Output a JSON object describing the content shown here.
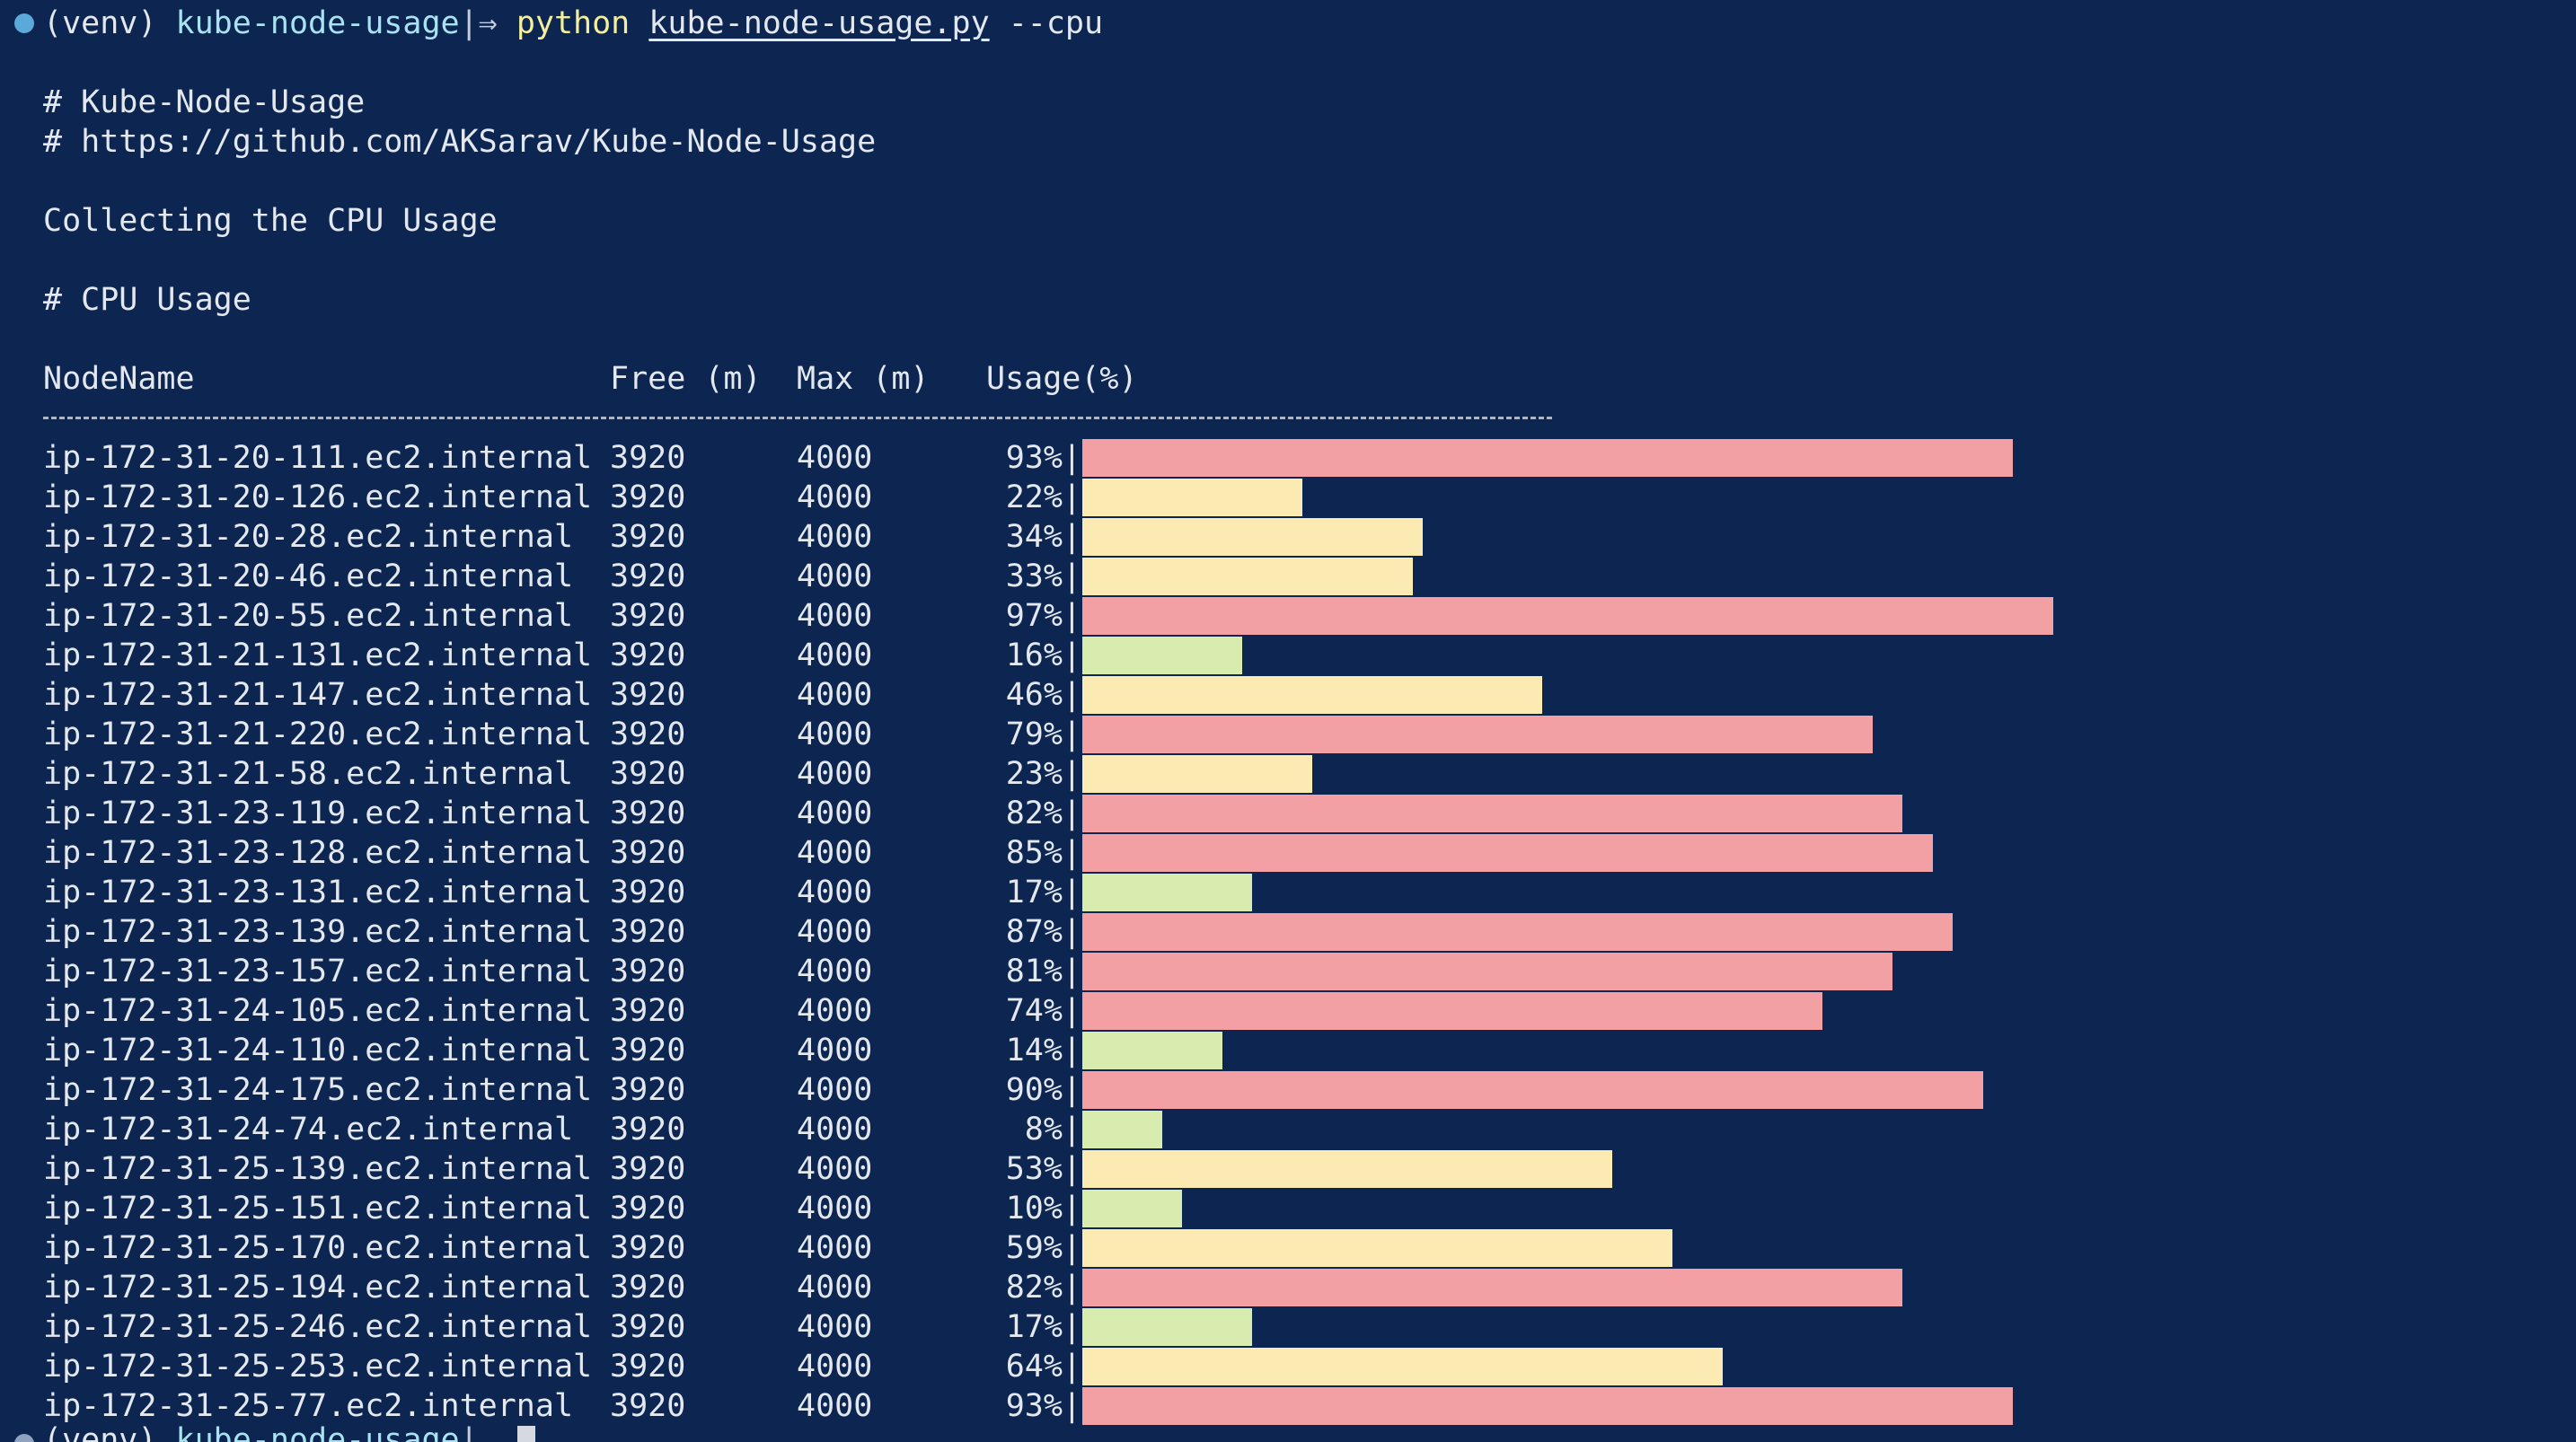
{
  "colors": {
    "background": "#0c2551",
    "text": "#e3e7ee",
    "prompt_dot": "#5aa9d8",
    "bar_high": "#f2a0a4",
    "bar_mid": "#fbeab2",
    "bar_low": "#d8ecb0"
  },
  "prompt": {
    "venv": "(venv)",
    "directory": "kube-node-usage",
    "separator": "|⇒",
    "command": "python",
    "script": "kube-node-usage.py",
    "argument": "--cpu"
  },
  "output": {
    "comment_title": "# Kube-Node-Usage",
    "comment_url": "# https://github.com/AKSarav/Kube-Node-Usage",
    "collecting": "Collecting the CPU Usage",
    "section_title": "# CPU Usage"
  },
  "table": {
    "headers": {
      "node": "NodeName",
      "free": "Free (m)",
      "max": "Max (m)",
      "usage": "Usage(%)"
    },
    "rows": [
      {
        "node": "ip-172-31-20-111.ec2.internal",
        "free": "3920",
        "max": "4000",
        "usage_label": "93%|",
        "usage": 93,
        "level": "high"
      },
      {
        "node": "ip-172-31-20-126.ec2.internal",
        "free": "3920",
        "max": "4000",
        "usage_label": "22%|",
        "usage": 22,
        "level": "mid"
      },
      {
        "node": "ip-172-31-20-28.ec2.internal",
        "free": "3920",
        "max": "4000",
        "usage_label": "34%|",
        "usage": 34,
        "level": "mid"
      },
      {
        "node": "ip-172-31-20-46.ec2.internal",
        "free": "3920",
        "max": "4000",
        "usage_label": "33%|",
        "usage": 33,
        "level": "mid"
      },
      {
        "node": "ip-172-31-20-55.ec2.internal",
        "free": "3920",
        "max": "4000",
        "usage_label": "97%|",
        "usage": 97,
        "level": "high"
      },
      {
        "node": "ip-172-31-21-131.ec2.internal",
        "free": "3920",
        "max": "4000",
        "usage_label": "16%|",
        "usage": 16,
        "level": "low"
      },
      {
        "node": "ip-172-31-21-147.ec2.internal",
        "free": "3920",
        "max": "4000",
        "usage_label": "46%|",
        "usage": 46,
        "level": "mid"
      },
      {
        "node": "ip-172-31-21-220.ec2.internal",
        "free": "3920",
        "max": "4000",
        "usage_label": "79%|",
        "usage": 79,
        "level": "high"
      },
      {
        "node": "ip-172-31-21-58.ec2.internal",
        "free": "3920",
        "max": "4000",
        "usage_label": "23%|",
        "usage": 23,
        "level": "mid"
      },
      {
        "node": "ip-172-31-23-119.ec2.internal",
        "free": "3920",
        "max": "4000",
        "usage_label": "82%|",
        "usage": 82,
        "level": "high"
      },
      {
        "node": "ip-172-31-23-128.ec2.internal",
        "free": "3920",
        "max": "4000",
        "usage_label": "85%|",
        "usage": 85,
        "level": "high"
      },
      {
        "node": "ip-172-31-23-131.ec2.internal",
        "free": "3920",
        "max": "4000",
        "usage_label": "17%|",
        "usage": 17,
        "level": "low"
      },
      {
        "node": "ip-172-31-23-139.ec2.internal",
        "free": "3920",
        "max": "4000",
        "usage_label": "87%|",
        "usage": 87,
        "level": "high"
      },
      {
        "node": "ip-172-31-23-157.ec2.internal",
        "free": "3920",
        "max": "4000",
        "usage_label": "81%|",
        "usage": 81,
        "level": "high"
      },
      {
        "node": "ip-172-31-24-105.ec2.internal",
        "free": "3920",
        "max": "4000",
        "usage_label": "74%|",
        "usage": 74,
        "level": "high"
      },
      {
        "node": "ip-172-31-24-110.ec2.internal",
        "free": "3920",
        "max": "4000",
        "usage_label": "14%|",
        "usage": 14,
        "level": "low"
      },
      {
        "node": "ip-172-31-24-175.ec2.internal",
        "free": "3920",
        "max": "4000",
        "usage_label": "90%|",
        "usage": 90,
        "level": "high"
      },
      {
        "node": "ip-172-31-24-74.ec2.internal",
        "free": "3920",
        "max": "4000",
        "usage_label": "8%|",
        "usage": 8,
        "level": "low"
      },
      {
        "node": "ip-172-31-25-139.ec2.internal",
        "free": "3920",
        "max": "4000",
        "usage_label": "53%|",
        "usage": 53,
        "level": "mid"
      },
      {
        "node": "ip-172-31-25-151.ec2.internal",
        "free": "3920",
        "max": "4000",
        "usage_label": "10%|",
        "usage": 10,
        "level": "low"
      },
      {
        "node": "ip-172-31-25-170.ec2.internal",
        "free": "3920",
        "max": "4000",
        "usage_label": "59%|",
        "usage": 59,
        "level": "mid"
      },
      {
        "node": "ip-172-31-25-194.ec2.internal",
        "free": "3920",
        "max": "4000",
        "usage_label": "82%|",
        "usage": 82,
        "level": "high"
      },
      {
        "node": "ip-172-31-25-246.ec2.internal",
        "free": "3920",
        "max": "4000",
        "usage_label": "17%|",
        "usage": 17,
        "level": "low"
      },
      {
        "node": "ip-172-31-25-253.ec2.internal",
        "free": "3920",
        "max": "4000",
        "usage_label": "64%|",
        "usage": 64,
        "level": "mid"
      },
      {
        "node": "ip-172-31-25-77.ec2.internal",
        "free": "3920",
        "max": "4000",
        "usage_label": "93%|",
        "usage": 93,
        "level": "high"
      }
    ]
  },
  "final_prompt": {
    "venv": "(venv)",
    "directory": "kube-node-usage",
    "separator": "|"
  }
}
